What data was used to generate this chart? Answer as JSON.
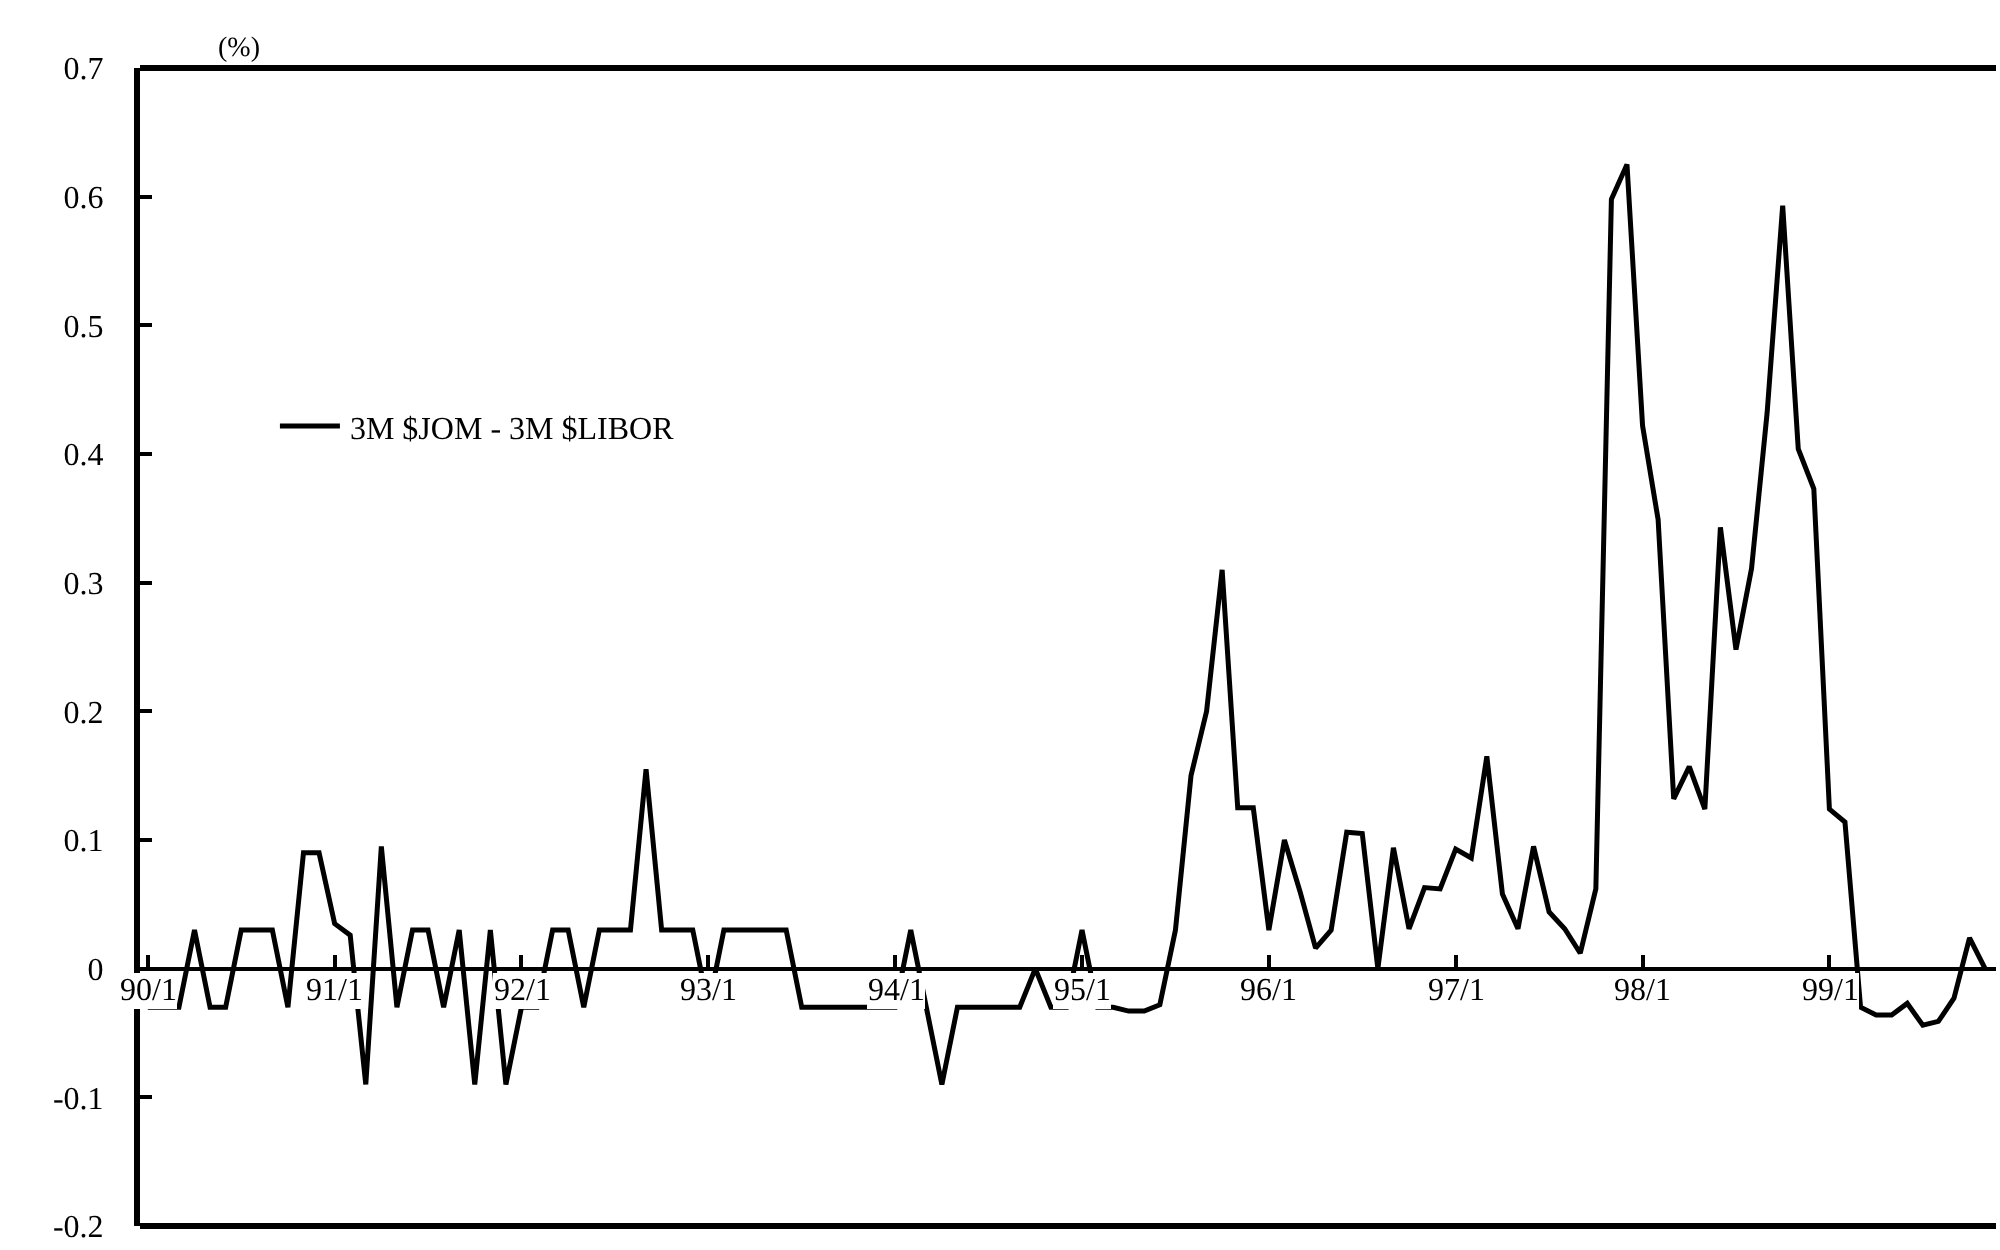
{
  "chart_data": {
    "type": "line",
    "ylabel": "(%)",
    "categories": [
      "90/1",
      null,
      null,
      null,
      null,
      null,
      null,
      null,
      null,
      null,
      null,
      null,
      "91/1",
      null,
      null,
      null,
      null,
      null,
      null,
      null,
      null,
      null,
      null,
      null,
      "92/1",
      null,
      null,
      null,
      null,
      null,
      null,
      null,
      null,
      null,
      null,
      null,
      "93/1",
      null,
      null,
      null,
      null,
      null,
      null,
      null,
      null,
      null,
      null,
      null,
      "94/1",
      null,
      null,
      null,
      null,
      null,
      null,
      null,
      null,
      null,
      null,
      null,
      "95/1",
      null,
      null,
      null,
      null,
      null,
      null,
      null,
      null,
      null,
      null,
      null,
      "96/1",
      null,
      null,
      null,
      null,
      null,
      null,
      null,
      null,
      null,
      null,
      null,
      "97/1",
      null,
      null,
      null,
      null,
      null,
      null,
      null,
      null,
      null,
      null,
      null,
      "98/1",
      null,
      null,
      null,
      null,
      null,
      null,
      null,
      null,
      null,
      null,
      null,
      "99/1",
      null,
      null,
      null,
      null,
      null,
      null,
      null,
      null,
      null,
      null
    ],
    "series": [
      {
        "name": "3M $JOM - 3M $LIBOR",
        "color": "#000000",
        "values": [
          -0.03,
          -0.03,
          -0.03,
          0.03,
          -0.03,
          -0.03,
          0.03,
          0.03,
          0.03,
          -0.03,
          0.09,
          0.09,
          0.035,
          0.026,
          -0.09,
          0.095,
          -0.03,
          0.03,
          0.03,
          -0.03,
          0.03,
          -0.09,
          0.03,
          -0.09,
          -0.03,
          -0.03,
          0.03,
          0.03,
          -0.03,
          0.03,
          0.03,
          0.03,
          0.155,
          0.03,
          0.03,
          0.03,
          -0.03,
          0.03,
          0.03,
          0.03,
          0.03,
          0.03,
          -0.03,
          -0.03,
          -0.03,
          -0.03,
          -0.03,
          -0.03,
          -0.03,
          0.03,
          -0.03,
          -0.09,
          -0.03,
          -0.03,
          -0.03,
          -0.03,
          -0.03,
          0.0,
          -0.03,
          -0.03,
          0.03,
          -0.03,
          -0.03,
          -0.033,
          -0.033,
          -0.028,
          0.03,
          0.15,
          0.2,
          0.31,
          0.125,
          0.125,
          0.03,
          0.1,
          0.06,
          0.016,
          0.03,
          0.106,
          0.105,
          0.0,
          0.094,
          0.031,
          0.063,
          0.062,
          0.093,
          0.086,
          0.165,
          0.058,
          0.031,
          0.095,
          0.044,
          0.031,
          0.012,
          0.062,
          0.598,
          0.625,
          0.422,
          0.349,
          0.132,
          0.157,
          0.124,
          0.343,
          0.248,
          0.311,
          0.432,
          0.593,
          0.404,
          0.373,
          0.124,
          0.114,
          -0.03,
          -0.036,
          -0.036,
          -0.027,
          -0.044,
          -0.041,
          -0.023,
          0.024,
          0.0
        ]
      }
    ],
    "ylim": [
      -0.2,
      0.7
    ],
    "yticks": [
      -0.2,
      -0.1,
      0,
      0.1,
      0.2,
      0.3,
      0.4,
      0.5,
      0.6,
      0.7
    ],
    "legend": "top left",
    "marker": "none",
    "line_style": "solid"
  }
}
